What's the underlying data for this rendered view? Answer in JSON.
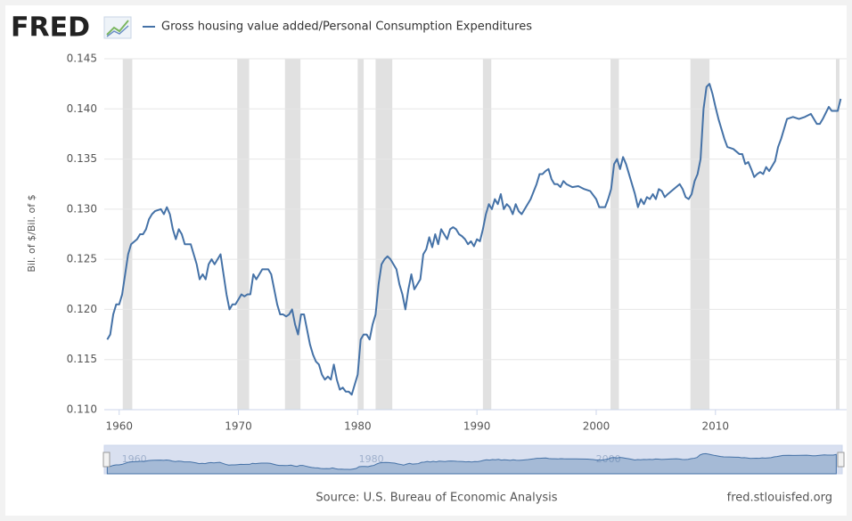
{
  "logo": "FRED",
  "chart_data": {
    "type": "line",
    "y_label": "Bil. of $/Bil. of $",
    "source": "Source: U.S. Bureau of Economic Analysis",
    "site": "fred.stlouisfed.org",
    "grid": true,
    "xlim": [
      1958.75,
      2021
    ],
    "xticks": [
      1960,
      1970,
      1980,
      1990,
      2000,
      2010
    ],
    "ylim": [
      0.11,
      0.145
    ],
    "yticks": [
      {
        "value": 0.11,
        "label": "0.110"
      },
      0.115,
      {
        "value": 0.12,
        "label": "0.120"
      },
      0.125,
      {
        "value": 0.13,
        "label": "0.130"
      },
      0.135,
      {
        "value": 0.14,
        "label": "0.140"
      },
      0.145
    ],
    "navigator_ticks": [
      1960,
      1980,
      2000
    ],
    "recessions": [
      [
        1960.3,
        1961.1
      ],
      [
        1969.9,
        1970.9
      ],
      [
        1973.9,
        1975.2
      ],
      [
        1980.0,
        1980.5
      ],
      [
        1981.5,
        1982.9
      ],
      [
        1990.5,
        1991.2
      ],
      [
        2001.2,
        2001.9
      ],
      [
        2007.9,
        2009.5
      ],
      [
        2020.1,
        2020.4
      ]
    ],
    "recession_color": "#e1e1e1",
    "x": [
      1959,
      1959.25,
      1959.5,
      1959.75,
      1960,
      1960.25,
      1960.5,
      1960.75,
      1961,
      1961.5,
      1961.75,
      1962,
      1962.25,
      1962.5,
      1962.75,
      1963,
      1963.5,
      1963.75,
      1964,
      1964.25,
      1964.5,
      1964.75,
      1965,
      1965.25,
      1965.5,
      1966,
      1966.5,
      1966.75,
      1967,
      1967.25,
      1967.5,
      1967.75,
      1968,
      1968.25,
      1968.5,
      1968.75,
      1969,
      1969.25,
      1969.5,
      1969.75,
      1970,
      1970.25,
      1970.5,
      1970.75,
      1971,
      1971.25,
      1971.5,
      1971.75,
      1972,
      1972.25,
      1972.5,
      1972.75,
      1973,
      1973.25,
      1973.5,
      1973.75,
      1974,
      1974.25,
      1974.5,
      1974.75,
      1975,
      1975.25,
      1975.5,
      1975.75,
      1976,
      1976.25,
      1976.5,
      1976.75,
      1977,
      1977.25,
      1977.5,
      1977.75,
      1978,
      1978.25,
      1978.5,
      1978.75,
      1979,
      1979.25,
      1979.5,
      1979.75,
      1980,
      1980.25,
      1980.5,
      1980.75,
      1981,
      1981.25,
      1981.5,
      1981.75,
      1982,
      1982.25,
      1982.5,
      1982.75,
      1983,
      1983.25,
      1983.5,
      1983.75,
      1984,
      1984.25,
      1984.5,
      1984.75,
      1985,
      1985.25,
      1985.5,
      1985.75,
      1986,
      1986.25,
      1986.5,
      1986.75,
      1987,
      1987.25,
      1987.5,
      1987.75,
      1988,
      1988.25,
      1988.5,
      1988.75,
      1989,
      1989.25,
      1989.5,
      1989.75,
      1990,
      1990.25,
      1990.5,
      1990.75,
      1991,
      1991.25,
      1991.5,
      1991.75,
      1992,
      1992.25,
      1992.5,
      1992.75,
      1993,
      1993.25,
      1993.5,
      1993.75,
      1994,
      1994.5,
      1995,
      1995.25,
      1995.5,
      1995.75,
      1996,
      1996.25,
      1996.5,
      1996.75,
      1997,
      1997.25,
      1997.5,
      1998,
      1998.5,
      1999,
      1999.5,
      2000,
      2000.25,
      2000.75,
      2001,
      2001.25,
      2001.5,
      2001.75,
      2002,
      2002.25,
      2002.5,
      2002.75,
      2003,
      2003.25,
      2003.5,
      2003.75,
      2004,
      2004.25,
      2004.5,
      2004.75,
      2005,
      2005.25,
      2005.5,
      2005.75,
      2006,
      2006.5,
      2007,
      2007.25,
      2007.5,
      2007.75,
      2008,
      2008.25,
      2008.5,
      2008.75,
      2009,
      2009.25,
      2009.5,
      2009.75,
      2010,
      2010.25,
      2010.5,
      2010.75,
      2011,
      2011.5,
      2012,
      2012.25,
      2012.5,
      2012.75,
      2013,
      2013.25,
      2013.5,
      2013.75,
      2014,
      2014.25,
      2014.5,
      2014.75,
      2015,
      2015.25,
      2015.5,
      2015.75,
      2016,
      2016.5,
      2017,
      2017.5,
      2018,
      2018.25,
      2018.5,
      2018.75,
      2019,
      2019.5,
      2019.75,
      2020,
      2020.25,
      2020.5
    ],
    "series": [
      {
        "name": "Gross housing value added/Personal Consumption Expenditures",
        "color": "#4572a7",
        "values": [
          0.117,
          0.1175,
          0.1195,
          0.1205,
          0.1205,
          0.1215,
          0.1235,
          0.1255,
          0.1265,
          0.127,
          0.1275,
          0.1275,
          0.128,
          0.129,
          0.1295,
          0.1298,
          0.13,
          0.1295,
          0.1302,
          0.1295,
          0.128,
          0.127,
          0.128,
          0.1275,
          0.1265,
          0.1265,
          0.1245,
          0.123,
          0.1235,
          0.123,
          0.1245,
          0.125,
          0.1245,
          0.125,
          0.1255,
          0.1235,
          0.1215,
          0.12,
          0.1205,
          0.1205,
          0.121,
          0.1215,
          0.1213,
          0.1215,
          0.1215,
          0.1235,
          0.123,
          0.1235,
          0.124,
          0.124,
          0.124,
          0.1235,
          0.122,
          0.1205,
          0.1195,
          0.1195,
          0.1193,
          0.1195,
          0.12,
          0.1185,
          0.1175,
          0.1195,
          0.1195,
          0.118,
          0.1165,
          0.1155,
          0.1148,
          0.1145,
          0.1135,
          0.113,
          0.1133,
          0.113,
          0.1145,
          0.113,
          0.112,
          0.1122,
          0.1118,
          0.1118,
          0.1115,
          0.1125,
          0.1135,
          0.117,
          0.1175,
          0.1175,
          0.117,
          0.1185,
          0.1195,
          0.1225,
          0.1245,
          0.125,
          0.1253,
          0.125,
          0.1245,
          0.124,
          0.1225,
          0.1215,
          0.12,
          0.122,
          0.1235,
          0.122,
          0.1225,
          0.123,
          0.1255,
          0.126,
          0.1272,
          0.1262,
          0.1275,
          0.1265,
          0.128,
          0.1275,
          0.127,
          0.128,
          0.1282,
          0.128,
          0.1275,
          0.1273,
          0.127,
          0.1265,
          0.1268,
          0.1263,
          0.127,
          0.1268,
          0.128,
          0.1295,
          0.1305,
          0.13,
          0.131,
          0.1305,
          0.1315,
          0.13,
          0.1305,
          0.1302,
          0.1295,
          0.1305,
          0.1298,
          0.1295,
          0.13,
          0.131,
          0.1325,
          0.1335,
          0.1335,
          0.1338,
          0.134,
          0.133,
          0.1325,
          0.1325,
          0.1322,
          0.1328,
          0.1325,
          0.1322,
          0.1323,
          0.132,
          0.1318,
          0.131,
          0.1302,
          0.1302,
          0.131,
          0.132,
          0.1345,
          0.135,
          0.134,
          0.1352,
          0.1345,
          0.1335,
          0.1325,
          0.1315,
          0.1302,
          0.131,
          0.1305,
          0.1312,
          0.131,
          0.1315,
          0.131,
          0.132,
          0.1318,
          0.1312,
          0.1315,
          0.132,
          0.1325,
          0.132,
          0.1312,
          0.131,
          0.1315,
          0.1328,
          0.1335,
          0.135,
          0.14,
          0.1422,
          0.1425,
          0.1415,
          0.1402,
          0.139,
          0.138,
          0.137,
          0.1362,
          0.136,
          0.1355,
          0.1355,
          0.1345,
          0.1347,
          0.134,
          0.1332,
          0.1335,
          0.1337,
          0.1335,
          0.1342,
          0.1338,
          0.1343,
          0.1348,
          0.1362,
          0.137,
          0.138,
          0.139,
          0.1392,
          0.139,
          0.1392,
          0.1395,
          0.139,
          0.1385,
          0.1385,
          0.139,
          0.1402,
          0.1398,
          0.1398,
          0.1398,
          0.141
        ]
      }
    ]
  }
}
